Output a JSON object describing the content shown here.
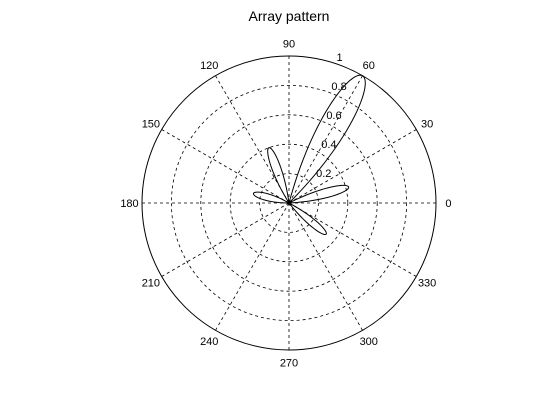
{
  "chart_data": {
    "type": "polar-line",
    "title": "Array pattern",
    "angle_unit": "degrees",
    "angle_ticks": [
      0,
      30,
      60,
      90,
      120,
      150,
      180,
      210,
      240,
      270,
      300,
      330
    ],
    "angle_tick_labels": [
      "0",
      "30",
      "60",
      "90",
      "120",
      "150",
      "180",
      "210",
      "240",
      "270",
      "300",
      "330"
    ],
    "radial_range": [
      0,
      1
    ],
    "radial_ticks": [
      0.2,
      0.4,
      0.6,
      0.8,
      1
    ],
    "radial_tick_labels": [
      "0.2",
      "0.4",
      "0.6",
      "0.8",
      "1"
    ],
    "grid": true,
    "line_color": "#000000",
    "series": [
      {
        "lobes": [
          {
            "center_angle": 60,
            "peak": 1.0,
            "half_width": 15
          },
          {
            "center_angle": 110,
            "peak": 0.4,
            "half_width": 12
          },
          {
            "center_angle": 165,
            "peak": 0.25,
            "half_width": 15
          },
          {
            "center_angle": 15,
            "peak": 0.42,
            "half_width": 12
          },
          {
            "center_angle": 320,
            "peak": 0.33,
            "half_width": 12
          }
        ]
      }
    ]
  }
}
